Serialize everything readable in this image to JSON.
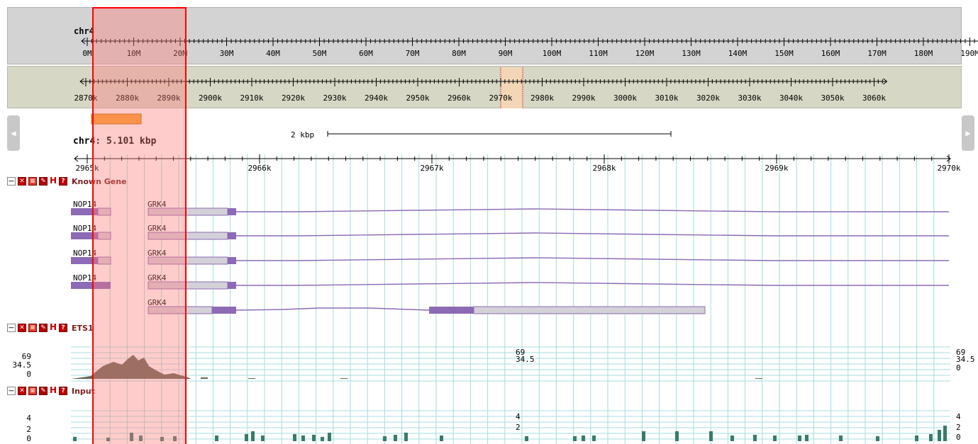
{
  "overview": {
    "chromosome": "chr4",
    "ticks": [
      "0M",
      "10M",
      "20M",
      "30M",
      "40M",
      "50M",
      "60M",
      "70M",
      "80M",
      "90M",
      "100M",
      "110M",
      "120M",
      "130M",
      "140M",
      "150M",
      "160M",
      "170M",
      "180M",
      "190M"
    ]
  },
  "region": {
    "ticks": [
      "2870k",
      "2880k",
      "2890k",
      "2900k",
      "2910k",
      "2920k",
      "2930k",
      "2940k",
      "2950k",
      "2960k",
      "2970k",
      "2980k",
      "2990k",
      "3000k",
      "3010k",
      "3020k",
      "3030k",
      "3040k",
      "3050k",
      "3060k"
    ]
  },
  "detail": {
    "location_label": "chr4: 5.101 kbp",
    "scale_label": "2 kbp",
    "ticks": [
      "2965k",
      "2966k",
      "2967k",
      "2968k",
      "2969k",
      "2970k"
    ]
  },
  "tracks": [
    {
      "name": "Known Gene",
      "genes": [
        {
          "label_left": "NOP14",
          "label_right": "GRK4"
        },
        {
          "label_left": "NOP14",
          "label_right": "GRK4"
        },
        {
          "label_left": "NOP14",
          "label_right": "GRK4"
        },
        {
          "label_left": "NOP14",
          "label_right": "GRK4"
        },
        {
          "label_left": "",
          "label_right": "GRK4"
        }
      ]
    },
    {
      "name": "ETS1",
      "axis_max": "69",
      "axis_mid": "34.5",
      "axis_min": "0"
    },
    {
      "name": "Input",
      "axis_max": "4",
      "axis_mid": "2",
      "axis_min": "0"
    }
  ],
  "colors": {
    "overview_bg": "#d3d3d3",
    "region_bg": "#d6d7c4",
    "selection_border": "#ff0000",
    "selection_fill": "#ffb3b3",
    "gene_purple": "#8c6ab5",
    "gene_utr": "#d3d0d8",
    "signal": "#5f6a54",
    "signal_input": "#3a7a6a",
    "grid": "#a6dde0"
  },
  "icons": [
    "minimize-icon",
    "close-icon",
    "rss-icon",
    "edit-icon",
    "h-icon",
    "help-icon"
  ]
}
